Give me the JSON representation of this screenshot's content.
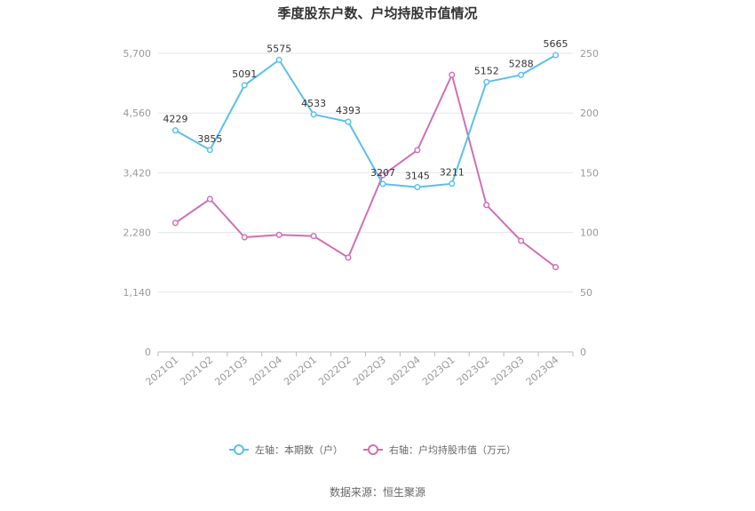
{
  "chart_data": {
    "type": "line",
    "title": "季度股东户数、户均持股市值情况",
    "categories": [
      "2021Q1",
      "2021Q2",
      "2021Q3",
      "2021Q4",
      "2022Q1",
      "2022Q2",
      "2022Q3",
      "2022Q4",
      "2023Q1",
      "2023Q2",
      "2023Q3",
      "2023Q4"
    ],
    "y_left": {
      "min": 0,
      "max": 5700,
      "ticks": [
        0,
        1140,
        2280,
        3420,
        4560,
        5700
      ],
      "tick_labels": [
        "0",
        "1,140",
        "2,280",
        "3,420",
        "4,560",
        "5,700"
      ]
    },
    "y_right": {
      "min": 0,
      "max": 250,
      "ticks": [
        0,
        50,
        100,
        150,
        200,
        250
      ],
      "tick_labels": [
        "0",
        "50",
        "100",
        "150",
        "200",
        "250"
      ]
    },
    "series": [
      {
        "name": "左轴：本期数（户）",
        "axis": "left",
        "color": "#5bc0eb",
        "values": [
          4229,
          3855,
          5091,
          5575,
          4533,
          4393,
          3207,
          3145,
          3211,
          5152,
          5288,
          5665
        ],
        "labels": [
          "4229",
          "3855",
          "5091",
          "5575",
          "4533",
          "4393",
          "3207",
          "3145",
          "3211",
          "5152",
          "5288",
          "5665"
        ]
      },
      {
        "name": "右轴：户均持股市值（万元）",
        "axis": "right",
        "color": "#d070b5",
        "values": [
          108,
          128,
          96,
          98,
          97,
          79,
          148,
          169,
          232,
          123,
          93,
          71
        ]
      }
    ],
    "grid": true,
    "legend_position": "bottom"
  },
  "source": "数据来源：恒生聚源"
}
